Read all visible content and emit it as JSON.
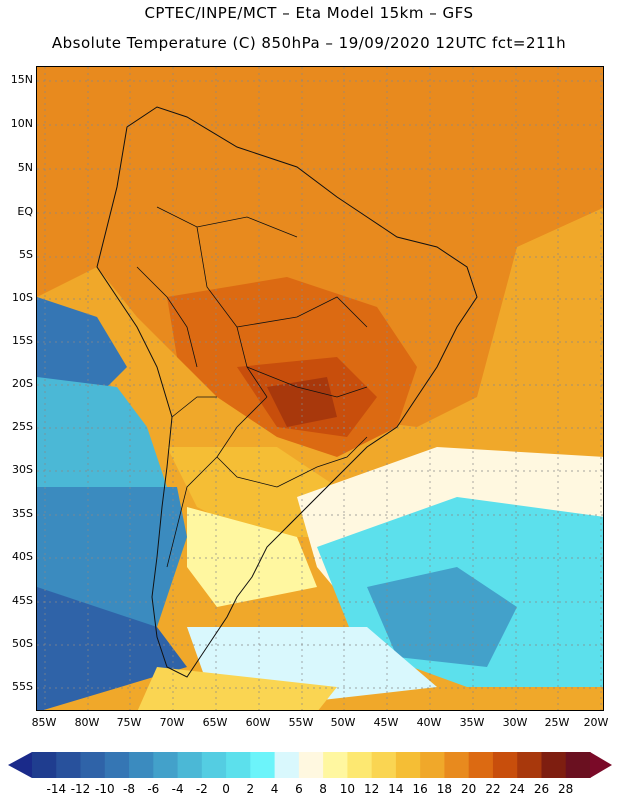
{
  "header": {
    "line1": "CPTEC/INPE/MCT –  Eta Model 15km – GFS",
    "line2": "Absolute Temperature (C) 850hPa – 19/09/2020 12UTC fct=211h"
  },
  "map": {
    "lat_labels": [
      "15N",
      "10N",
      "5N",
      "EQ",
      "5S",
      "10S",
      "15S",
      "20S",
      "25S",
      "30S",
      "35S",
      "40S",
      "45S",
      "50S",
      "55S"
    ],
    "lon_labels": [
      "85W",
      "80W",
      "75W",
      "70W",
      "65W",
      "60W",
      "55W",
      "50W",
      "45W",
      "40W",
      "35W",
      "30W",
      "25W",
      "20W"
    ],
    "regions": [
      {
        "name": "ocean-warm",
        "level": 20
      },
      {
        "name": "continent-hot",
        "level": 22
      },
      {
        "name": "interior-core",
        "level": 26
      },
      {
        "name": "southern-cool",
        "level": 4
      },
      {
        "name": "patagonia-cold",
        "level": -6
      }
    ]
  },
  "colorbar": {
    "labels": [
      "-14",
      "-12",
      "-10",
      "-8",
      "-6",
      "-4",
      "-2",
      "0",
      "2",
      "4",
      "6",
      "8",
      "10",
      "12",
      "14",
      "16",
      "18",
      "20",
      "22",
      "24",
      "26",
      "28"
    ],
    "colors": [
      "#1f3d8f",
      "#28519c",
      "#2f63a8",
      "#3576b4",
      "#3b8bbf",
      "#43a1ca",
      "#4bb8d6",
      "#54cde2",
      "#5ce0ec",
      "#6cf4fa",
      "#d9f8fd",
      "#fff8e0",
      "#fff7a0",
      "#fde871",
      "#fad552",
      "#f5be35",
      "#f0a82a",
      "#e88a1e",
      "#dc6a12",
      "#c84e0c",
      "#a8380c",
      "#7e1e10",
      "#6a1020"
    ],
    "over_color": "#7a0a28",
    "under_color": "#1a2a8a"
  }
}
